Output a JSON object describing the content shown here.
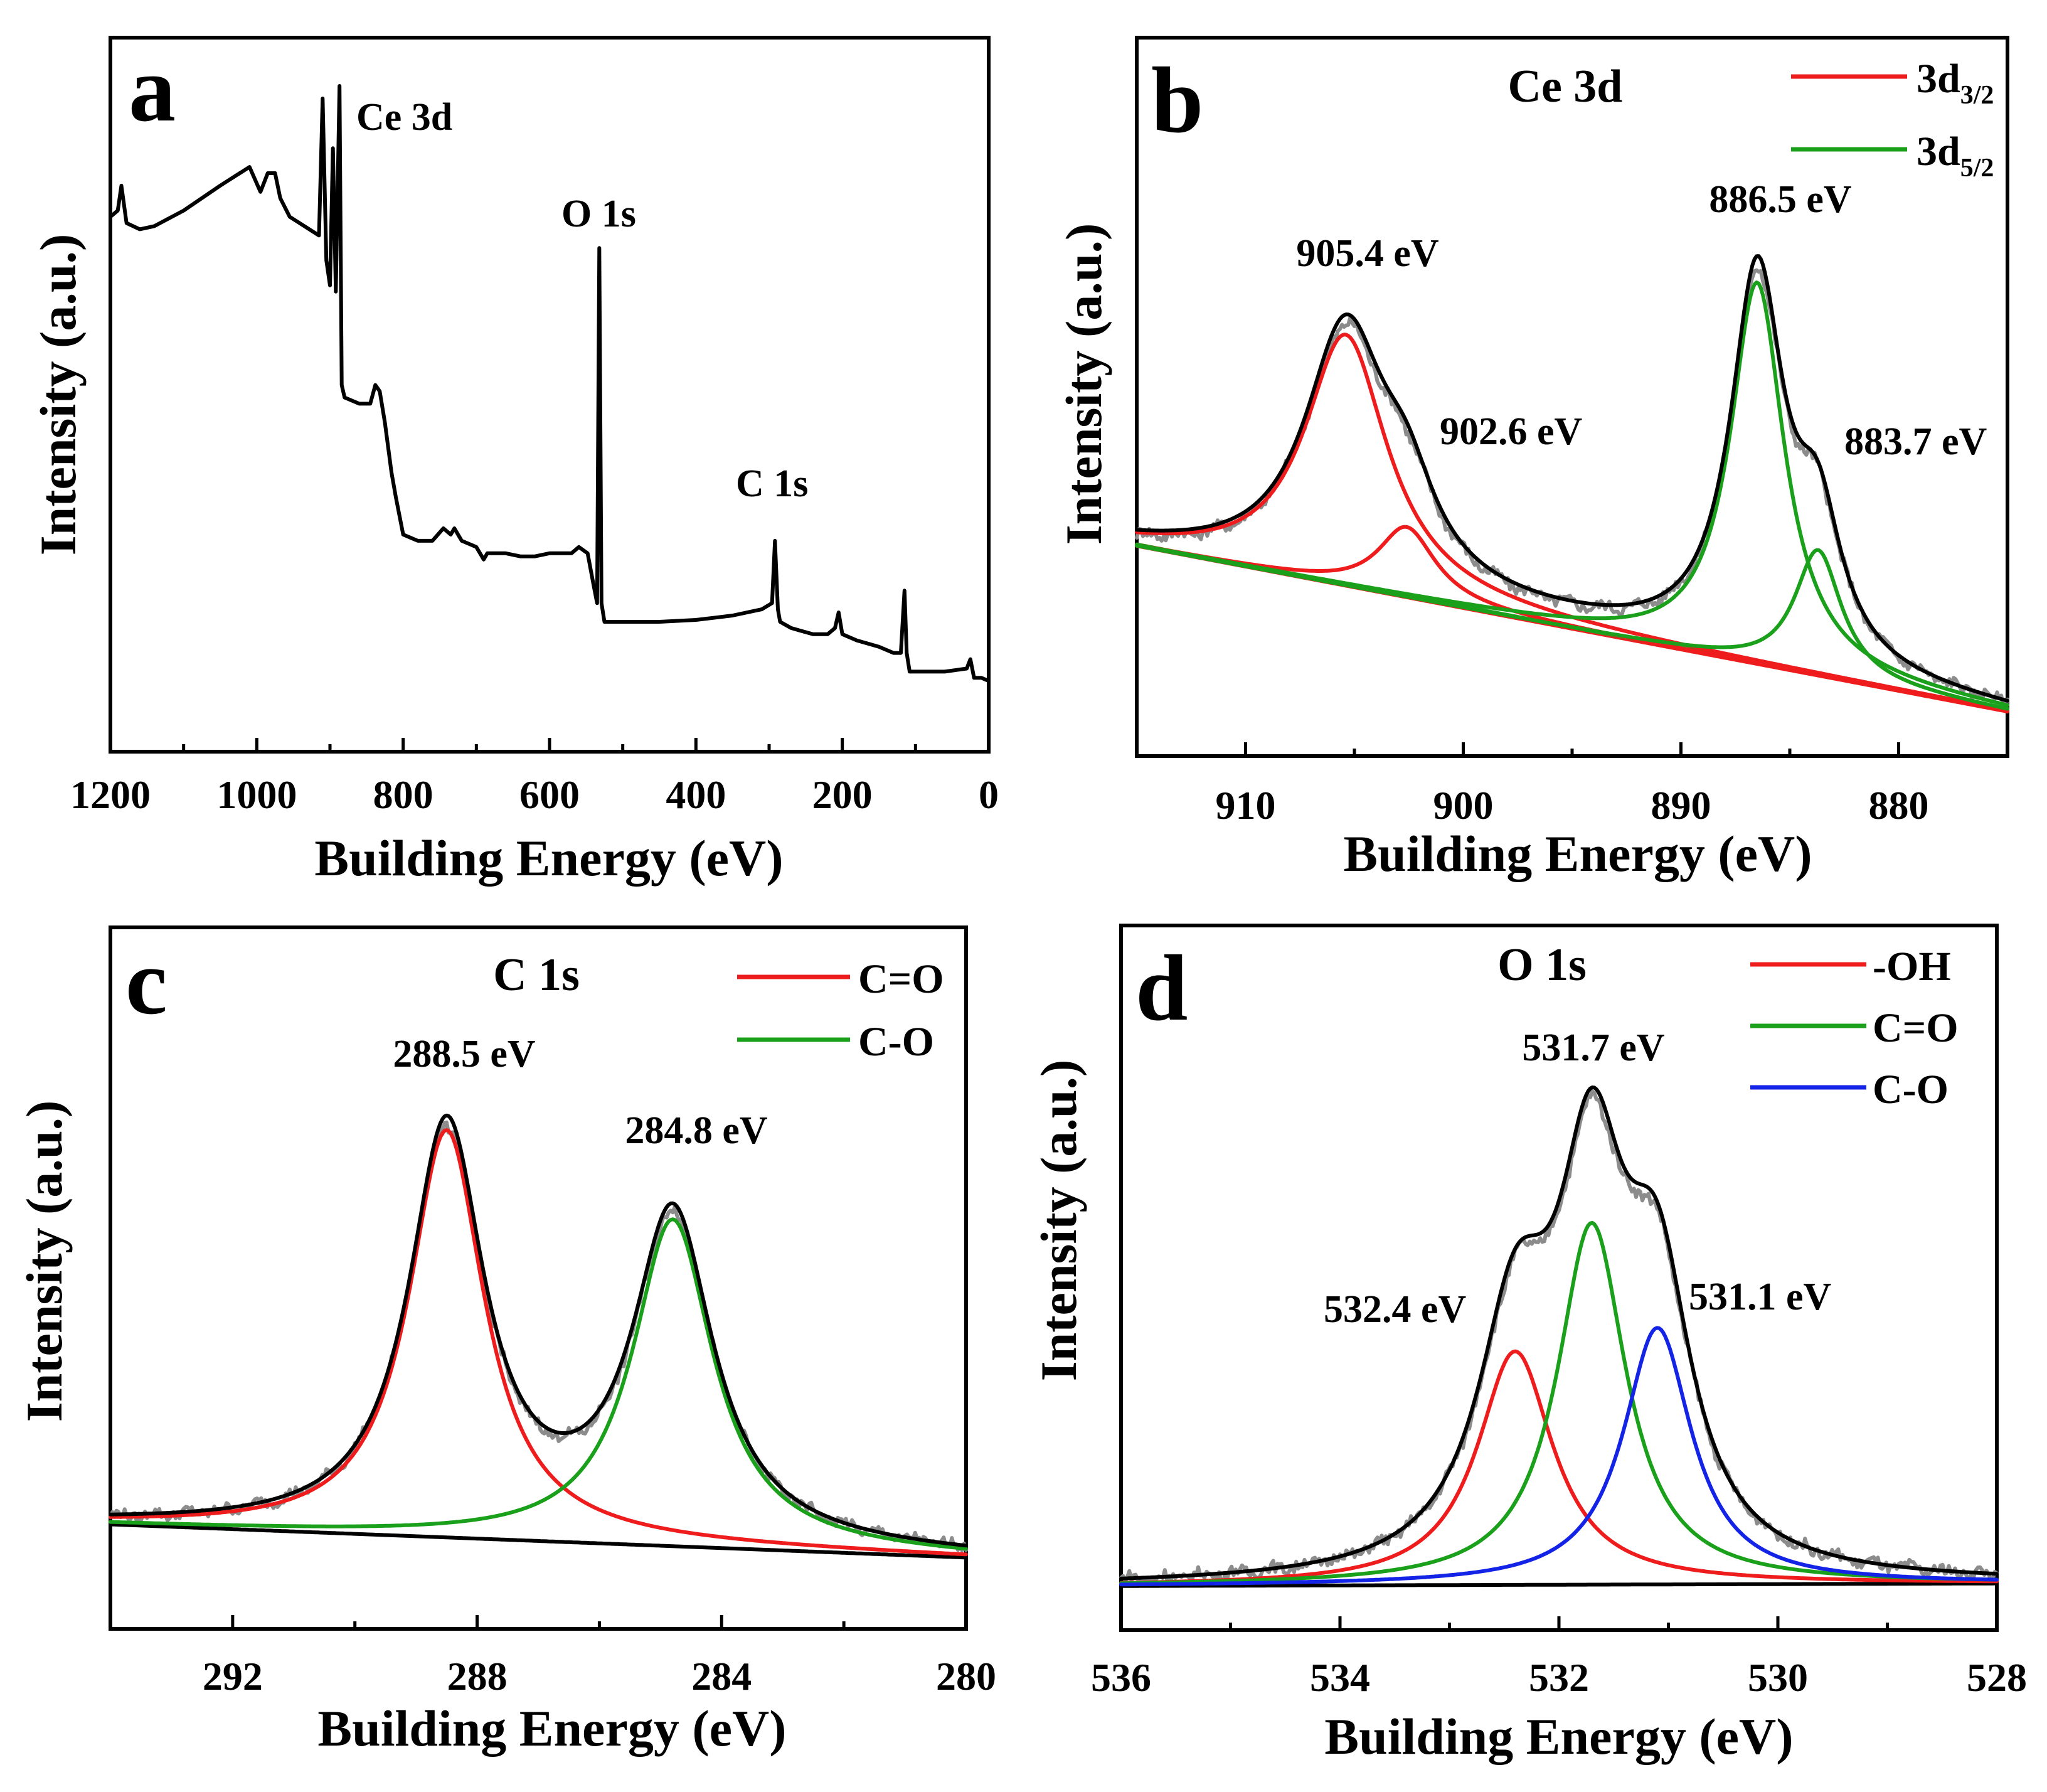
{
  "figure": {
    "colors": {
      "raw": "#8c8c8c",
      "fit": "#000000",
      "red": "#ee1c1c",
      "green": "#1aa01a",
      "blue": "#1424e6"
    }
  },
  "chart_data": [
    {
      "panel": "a",
      "type": "line",
      "title": "",
      "xlabel": "Building Energy (eV)",
      "ylabel": "Intensity (a.u.)",
      "xlim": [
        1200,
        0
      ],
      "ylim": [
        0,
        100
      ],
      "xticks": [
        "1200",
        "1000",
        "800",
        "600",
        "400",
        "200",
        "0"
      ],
      "annotations": [
        {
          "text": "Ce 3d",
          "x": 884,
          "y": 96
        },
        {
          "text": "O 1s",
          "x": 531,
          "y": 76
        },
        {
          "text": "C 1s",
          "x": 285,
          "y": 36
        }
      ],
      "series": [
        {
          "name": "survey",
          "color": "fit",
          "points": [
            [
              1200,
              79
            ],
            [
              1190,
              80
            ],
            [
              1185,
              84
            ],
            [
              1178,
              78
            ],
            [
              1160,
              77
            ],
            [
              1140,
              77.5
            ],
            [
              1100,
              80
            ],
            [
              1050,
              84
            ],
            [
              1010,
              87
            ],
            [
              995,
              83
            ],
            [
              985,
              86
            ],
            [
              975,
              86
            ],
            [
              968,
              82
            ],
            [
              955,
              79
            ],
            [
              915,
              76
            ],
            [
              910,
              98
            ],
            [
              905,
              72
            ],
            [
              900,
              68
            ],
            [
              896,
              90
            ],
            [
              892,
              67
            ],
            [
              887,
              100
            ],
            [
              884,
              52
            ],
            [
              880,
              50
            ],
            [
              860,
              49
            ],
            [
              845,
              49
            ],
            [
              838,
              52
            ],
            [
              832,
              51
            ],
            [
              825,
              46
            ],
            [
              816,
              38
            ],
            [
              810,
              34
            ],
            [
              800,
              28
            ],
            [
              780,
              27
            ],
            [
              760,
              27
            ],
            [
              745,
              29
            ],
            [
              735,
              28
            ],
            [
              730,
              29
            ],
            [
              720,
              27
            ],
            [
              700,
              26
            ],
            [
              690,
              24
            ],
            [
              685,
              25
            ],
            [
              660,
              25
            ],
            [
              640,
              24.5
            ],
            [
              620,
              24.5
            ],
            [
              600,
              25
            ],
            [
              570,
              25
            ],
            [
              560,
              26
            ],
            [
              548,
              25
            ],
            [
              540,
              20
            ],
            [
              535,
              17
            ],
            [
              532,
              74
            ],
            [
              529,
              17
            ],
            [
              525,
              14
            ],
            [
              500,
              14
            ],
            [
              450,
              14
            ],
            [
              400,
              14.3
            ],
            [
              350,
              15
            ],
            [
              310,
              16
            ],
            [
              296,
              17
            ],
            [
              292,
              27
            ],
            [
              288,
              16
            ],
            [
              285,
              14
            ],
            [
              270,
              13
            ],
            [
              240,
              12
            ],
            [
              220,
              12
            ],
            [
              210,
              13
            ],
            [
              205,
              15.5
            ],
            [
              200,
              12
            ],
            [
              180,
              11
            ],
            [
              150,
              10
            ],
            [
              130,
              9
            ],
            [
              120,
              9
            ],
            [
              115,
              19
            ],
            [
              112,
              9
            ],
            [
              108,
              6
            ],
            [
              100,
              6
            ],
            [
              60,
              6
            ],
            [
              30,
              6.5
            ],
            [
              25,
              8
            ],
            [
              20,
              5
            ],
            [
              10,
              5
            ],
            [
              0,
              4.5
            ]
          ]
        }
      ]
    },
    {
      "panel": "b",
      "type": "line",
      "title": "Ce 3d",
      "xlabel": "Building Energy (eV)",
      "ylabel": "Intensity (a.u.)",
      "xlim": [
        915,
        875
      ],
      "ylim": [
        0,
        1
      ],
      "xticks": [
        "910",
        "900",
        "890",
        "880"
      ],
      "legend": {
        "position": "top-right",
        "entries": [
          {
            "label": "3d",
            "sub": "3/2",
            "color": "red"
          },
          {
            "label": "3d",
            "sub": "5/2",
            "color": "green"
          }
        ]
      },
      "annotations": [
        {
          "text": "905.4 eV",
          "x": 905.4
        },
        {
          "text": "902.6 eV",
          "x": 902.6
        },
        {
          "text": "886.5 eV",
          "x": 886.5
        },
        {
          "text": "883.7 eV",
          "x": 883.7
        }
      ],
      "baseline": {
        "start": 0.35,
        "end": 0.02
      },
      "peaks": [
        {
          "name": "3d3/2",
          "center": 905.4,
          "height": 0.5,
          "width": 2.3,
          "color": "red"
        },
        {
          "name": "3d3/2",
          "center": 902.6,
          "height": 0.14,
          "width": 1.6,
          "color": "red"
        },
        {
          "name": "3d5/2",
          "center": 886.5,
          "height": 0.76,
          "width": 1.5,
          "color": "green"
        },
        {
          "name": "3d5/2",
          "center": 883.7,
          "height": 0.25,
          "width": 1.3,
          "color": "green"
        }
      ]
    },
    {
      "panel": "c",
      "type": "line",
      "title": "C 1s",
      "xlabel": "Building Energy (eV)",
      "ylabel": "Intensity (a.u.)",
      "xlim": [
        294,
        280
      ],
      "ylim": [
        0,
        1
      ],
      "xticks": [
        "292",
        "288",
        "284",
        "280"
      ],
      "legend": {
        "position": "top-right",
        "entries": [
          {
            "label": "C=O",
            "color": "red"
          },
          {
            "label": "C-O",
            "color": "green"
          }
        ]
      },
      "annotations": [
        {
          "text": "288.5 eV",
          "x": 288.5
        },
        {
          "text": "284.8 eV",
          "x": 284.8
        }
      ],
      "baseline": {
        "start": 0.1,
        "end": 0.03
      },
      "peaks": [
        {
          "name": "C=O",
          "center": 288.5,
          "height": 0.86,
          "width": 0.75,
          "color": "red"
        },
        {
          "name": "C-O",
          "center": 284.8,
          "height": 0.69,
          "width": 0.8,
          "color": "green"
        }
      ]
    },
    {
      "panel": "d",
      "type": "line",
      "title": "O 1s",
      "xlabel": "Building Energy (eV)",
      "ylabel": "Intensity (a.u.)",
      "xlim": [
        536,
        528
      ],
      "ylim": [
        0,
        1
      ],
      "xticks": [
        "536",
        "534",
        "532",
        "530",
        "528"
      ],
      "legend": {
        "position": "top-right",
        "entries": [
          {
            "label": "-OH",
            "color": "red"
          },
          {
            "label": "C=O",
            "color": "green"
          },
          {
            "label": "C-O",
            "color": "blue"
          }
        ]
      },
      "annotations": [
        {
          "text": "532.4 eV",
          "x": 532.4
        },
        {
          "text": "531.7 eV",
          "x": 531.7
        },
        {
          "text": "531.1 eV",
          "x": 531.1
        }
      ],
      "baseline": {
        "start": 0.015,
        "end": 0.02
      },
      "peaks": [
        {
          "name": "-OH",
          "center": 532.4,
          "height": 0.455,
          "width": 0.42,
          "color": "red"
        },
        {
          "name": "C=O",
          "center": 531.7,
          "height": 0.705,
          "width": 0.38,
          "color": "green"
        },
        {
          "name": "C-O",
          "center": 531.1,
          "height": 0.5,
          "width": 0.38,
          "color": "blue"
        }
      ]
    }
  ]
}
